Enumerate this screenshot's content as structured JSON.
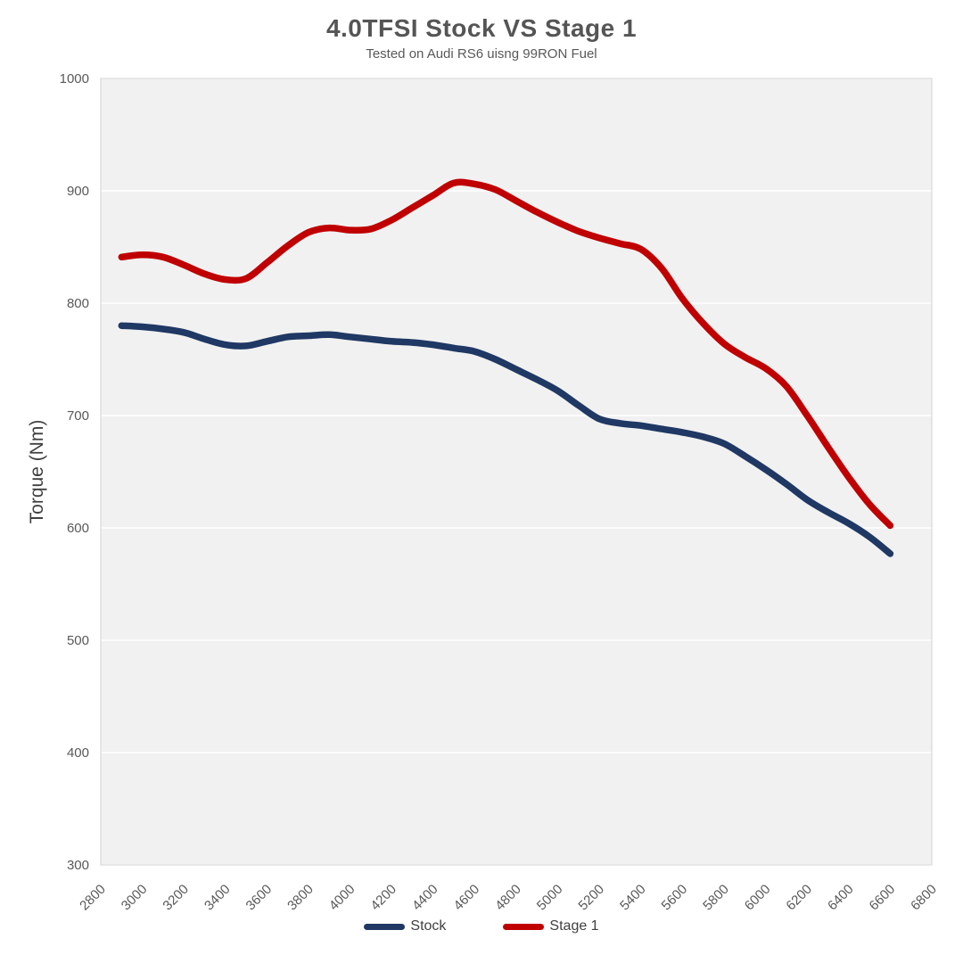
{
  "header": {
    "title": "4.0TFSI Stock VS Stage 1",
    "subtitle": "Tested on Audi RS6 uisng 99RON Fuel"
  },
  "chart_data": {
    "type": "line",
    "title": "4.0TFSI Stock VS Stage 1",
    "subtitle": "Tested on Audi RS6 uisng 99RON Fuel",
    "xlabel": "",
    "ylabel": "Torque (Nm)",
    "xlim": [
      2800,
      6800
    ],
    "ylim": [
      300,
      1000
    ],
    "x_ticks": [
      2800,
      3000,
      3200,
      3400,
      3600,
      3800,
      4000,
      4200,
      4400,
      4600,
      4800,
      5000,
      5200,
      5400,
      5600,
      5800,
      6000,
      6200,
      6400,
      6600,
      6800
    ],
    "y_ticks": [
      300,
      400,
      500,
      600,
      700,
      800,
      900,
      1000
    ],
    "grid": "horizontal-white-on-gray-panel",
    "legend_position": "bottom-center",
    "panel_color": "#f1f1f1",
    "panel_border_color": "#d9d9d9",
    "gridline_color": "#ffffff",
    "tick_label_color": "#595959",
    "x": [
      2900,
      3000,
      3100,
      3200,
      3300,
      3400,
      3500,
      3600,
      3700,
      3800,
      3900,
      4000,
      4100,
      4200,
      4300,
      4400,
      4500,
      4600,
      4700,
      4800,
      4900,
      5000,
      5100,
      5200,
      5300,
      5400,
      5500,
      5600,
      5700,
      5800,
      5900,
      6000,
      6100,
      6200,
      6300,
      6400,
      6500,
      6600
    ],
    "series": [
      {
        "name": "Stock",
        "color": "#1f3864",
        "values": [
          780,
          779,
          777,
          774,
          768,
          763,
          762,
          766,
          770,
          771,
          772,
          770,
          768,
          766,
          765,
          763,
          760,
          757,
          750,
          741,
          732,
          722,
          709,
          697,
          693,
          691,
          688,
          685,
          681,
          675,
          664,
          652,
          639,
          625,
          614,
          604,
          592,
          577
        ]
      },
      {
        "name": "Stage 1",
        "color": "#c00000",
        "values": [
          841,
          843,
          841,
          834,
          826,
          821,
          822,
          836,
          851,
          863,
          867,
          865,
          866,
          874,
          885,
          896,
          907,
          906,
          901,
          891,
          881,
          872,
          864,
          858,
          853,
          848,
          831,
          804,
          782,
          764,
          752,
          742,
          726,
          700,
          672,
          645,
          621,
          602
        ]
      }
    ]
  }
}
